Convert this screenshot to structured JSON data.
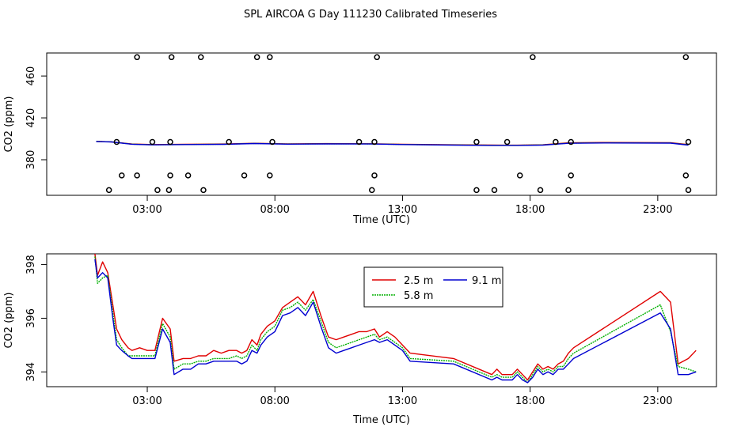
{
  "title": "SPL AIRCOA G  Day 111230  Calibrated Timeseries",
  "chart_data": [
    {
      "type": "scatter",
      "xlabel": "Time (UTC)",
      "ylabel": "CO2 (ppm)",
      "xlim": [
        -0.94,
        25.3
      ],
      "ylim": [
        346,
        482
      ],
      "xticks": [
        3,
        8,
        13,
        18,
        23
      ],
      "xtick_labels": [
        "03:00",
        "08:00",
        "13:00",
        "18:00",
        "23:00"
      ],
      "yticks": [
        380,
        420,
        460
      ],
      "ytick_labels": [
        "380",
        "420",
        "460"
      ],
      "points": [
        [
          1.5,
          351
        ],
        [
          2.6,
          365
        ],
        [
          3.4,
          351
        ],
        [
          3.85,
          351
        ],
        [
          5.2,
          351
        ],
        [
          7.8,
          365
        ],
        [
          11.8,
          351
        ],
        [
          15.9,
          351
        ],
        [
          16.6,
          351
        ],
        [
          18.4,
          351
        ],
        [
          19.5,
          351
        ],
        [
          24.2,
          351
        ],
        [
          2.0,
          365
        ],
        [
          3.9,
          365
        ],
        [
          4.6,
          365
        ],
        [
          6.8,
          365
        ],
        [
          11.9,
          365
        ],
        [
          17.6,
          365
        ],
        [
          19.6,
          365
        ],
        [
          24.1,
          365
        ],
        [
          1.8,
          397
        ],
        [
          3.2,
          397
        ],
        [
          3.9,
          397
        ],
        [
          6.2,
          397
        ],
        [
          7.9,
          397
        ],
        [
          11.3,
          397
        ],
        [
          11.9,
          397
        ],
        [
          15.9,
          397
        ],
        [
          17.1,
          397
        ],
        [
          19.0,
          397
        ],
        [
          19.6,
          397
        ],
        [
          24.2,
          397
        ],
        [
          2.6,
          478
        ],
        [
          3.95,
          478
        ],
        [
          5.1,
          478
        ],
        [
          7.3,
          478
        ],
        [
          7.8,
          478
        ],
        [
          12.0,
          478
        ],
        [
          18.1,
          478
        ],
        [
          24.1,
          478
        ]
      ],
      "series": [
        {
          "name": "2.5 m",
          "color": "#e00000",
          "x": [
            1.0,
            1.6,
            2.4,
            3.2,
            4.5,
            6.0,
            7.2,
            8.5,
            10.0,
            11.8,
            13.0,
            15.0,
            16.5,
            17.5,
            18.5,
            19.5,
            21.0,
            23.5,
            24.2
          ],
          "y": [
            397.5,
            397.1,
            395.0,
            394.5,
            394.8,
            395.0,
            395.7,
            395.2,
            395.4,
            395.3,
            394.8,
            394.3,
            394.0,
            393.9,
            394.3,
            396.2,
            396.5,
            396.3,
            394.5
          ]
        },
        {
          "name": "5.8 m",
          "color": "#00b000",
          "x": [
            1.0,
            1.6,
            2.4,
            3.2,
            4.5,
            6.0,
            7.2,
            8.5,
            10.0,
            11.8,
            13.0,
            15.0,
            16.5,
            17.5,
            18.5,
            19.5,
            21.0,
            23.5,
            24.2
          ],
          "y": [
            397.5,
            397.1,
            394.9,
            394.3,
            394.6,
            394.8,
            395.6,
            395.0,
            395.2,
            395.1,
            394.6,
            394.1,
            393.8,
            393.8,
            394.1,
            395.9,
            396.2,
            396.0,
            394.2
          ]
        },
        {
          "name": "9.1 m",
          "color": "#0000d0",
          "x": [
            1.0,
            1.6,
            2.4,
            3.2,
            4.5,
            6.0,
            7.2,
            8.5,
            10.0,
            11.8,
            13.0,
            15.0,
            16.5,
            17.5,
            18.5,
            19.5,
            21.0,
            23.5,
            24.2
          ],
          "y": [
            397.4,
            397.0,
            394.8,
            394.2,
            394.5,
            394.7,
            395.5,
            394.9,
            395.1,
            395.0,
            394.5,
            394.0,
            393.7,
            393.7,
            394.0,
            395.7,
            396.0,
            395.9,
            394.0
          ]
        }
      ]
    },
    {
      "type": "line",
      "xlabel": "Time (UTC)",
      "ylabel": "CO2 (ppm)",
      "xlim": [
        -0.94,
        25.3
      ],
      "ylim": [
        393.45,
        398.4
      ],
      "xticks": [
        3,
        8,
        13,
        18,
        23
      ],
      "xtick_labels": [
        "03:00",
        "08:00",
        "13:00",
        "18:00",
        "23:00"
      ],
      "yticks": [
        394,
        396,
        398
      ],
      "ytick_labels": [
        "394",
        "396",
        "398"
      ],
      "legend": {
        "position": "top-center",
        "entries": [
          "2.5 m",
          "5.8 m",
          "9.1 m"
        ]
      },
      "series": [
        {
          "name": "2.5 m",
          "color": "#e00000",
          "x": [
            0.95,
            1.05,
            1.25,
            1.45,
            1.65,
            1.8,
            2.0,
            2.25,
            2.4,
            2.7,
            3.0,
            3.3,
            3.6,
            3.9,
            4.05,
            4.4,
            4.7,
            5.0,
            5.3,
            5.6,
            5.9,
            6.2,
            6.5,
            6.7,
            6.9,
            7.1,
            7.3,
            7.45,
            7.7,
            8.0,
            8.3,
            8.6,
            8.9,
            9.2,
            9.5,
            9.8,
            10.1,
            10.4,
            10.7,
            11.0,
            11.3,
            11.6,
            11.9,
            12.1,
            12.4,
            12.7,
            13.0,
            13.3,
            15.0,
            16.5,
            16.7,
            16.9,
            17.1,
            17.3,
            17.5,
            17.7,
            17.9,
            18.1,
            18.3,
            18.5,
            18.7,
            18.9,
            19.1,
            19.3,
            19.5,
            19.7,
            23.1,
            23.5,
            23.8,
            24.2,
            24.5
          ],
          "y": [
            398.4,
            397.6,
            398.1,
            397.7,
            396.5,
            395.6,
            395.2,
            394.9,
            394.8,
            394.9,
            394.8,
            394.8,
            396.0,
            395.6,
            394.4,
            394.5,
            394.5,
            394.6,
            394.6,
            394.8,
            394.7,
            394.8,
            394.8,
            394.7,
            394.8,
            395.2,
            395.0,
            395.4,
            395.7,
            395.9,
            396.4,
            396.6,
            396.8,
            396.5,
            397.0,
            396.1,
            395.3,
            395.2,
            395.3,
            395.4,
            395.5,
            395.5,
            395.6,
            395.3,
            395.5,
            395.3,
            395.0,
            394.7,
            394.5,
            393.9,
            394.1,
            393.9,
            393.9,
            393.9,
            394.1,
            393.9,
            393.7,
            394.0,
            394.3,
            394.1,
            394.2,
            394.1,
            394.3,
            394.4,
            394.7,
            394.9,
            397.0,
            396.6,
            394.3,
            394.5,
            394.8
          ]
        },
        {
          "name": "5.8 m",
          "color": "#00b000",
          "x": [
            0.95,
            1.05,
            1.25,
            1.45,
            1.65,
            1.8,
            2.0,
            2.25,
            2.4,
            2.7,
            3.0,
            3.3,
            3.6,
            3.9,
            4.05,
            4.4,
            4.7,
            5.0,
            5.3,
            5.6,
            5.9,
            6.2,
            6.5,
            6.7,
            6.9,
            7.1,
            7.3,
            7.45,
            7.7,
            8.0,
            8.3,
            8.6,
            8.9,
            9.2,
            9.5,
            9.8,
            10.1,
            10.4,
            10.7,
            11.0,
            11.3,
            11.6,
            11.9,
            12.1,
            12.4,
            12.7,
            13.0,
            13.3,
            15.0,
            16.5,
            16.7,
            16.9,
            17.1,
            17.3,
            17.5,
            17.7,
            17.9,
            18.1,
            18.3,
            18.5,
            18.7,
            18.9,
            19.1,
            19.3,
            19.5,
            19.7,
            23.1,
            23.5,
            23.8,
            24.2,
            24.5
          ],
          "y": [
            398.3,
            397.3,
            397.5,
            397.6,
            396.2,
            395.2,
            394.9,
            394.6,
            394.6,
            394.6,
            394.6,
            394.6,
            395.8,
            395.3,
            394.1,
            394.3,
            394.3,
            394.4,
            394.4,
            394.5,
            394.5,
            394.5,
            394.6,
            394.5,
            394.6,
            395.0,
            394.8,
            395.2,
            395.5,
            395.7,
            396.3,
            396.4,
            396.6,
            396.3,
            396.7,
            395.9,
            395.1,
            394.9,
            395.0,
            395.1,
            395.2,
            395.3,
            395.4,
            395.2,
            395.3,
            395.1,
            394.9,
            394.5,
            394.4,
            393.8,
            393.9,
            393.8,
            393.8,
            393.8,
            394.0,
            393.8,
            393.6,
            393.9,
            394.2,
            394.0,
            394.1,
            394.0,
            394.2,
            394.2,
            394.5,
            394.7,
            396.5,
            395.5,
            394.2,
            394.1,
            394.0
          ]
        },
        {
          "name": "9.1 m",
          "color": "#0000d0",
          "x": [
            0.95,
            1.05,
            1.25,
            1.45,
            1.65,
            1.8,
            2.0,
            2.25,
            2.4,
            2.7,
            3.0,
            3.3,
            3.6,
            3.9,
            4.05,
            4.4,
            4.7,
            5.0,
            5.3,
            5.6,
            5.9,
            6.2,
            6.5,
            6.7,
            6.9,
            7.1,
            7.3,
            7.45,
            7.7,
            8.0,
            8.3,
            8.6,
            8.9,
            9.2,
            9.5,
            9.8,
            10.1,
            10.4,
            10.7,
            11.0,
            11.3,
            11.6,
            11.9,
            12.1,
            12.4,
            12.7,
            13.0,
            13.3,
            15.0,
            16.5,
            16.7,
            16.9,
            17.1,
            17.3,
            17.5,
            17.7,
            17.9,
            18.1,
            18.3,
            18.5,
            18.7,
            18.9,
            19.1,
            19.3,
            19.5,
            19.7,
            23.1,
            23.5,
            23.8,
            24.2,
            24.5
          ],
          "y": [
            398.2,
            397.5,
            397.7,
            397.5,
            396.0,
            395.0,
            394.8,
            394.6,
            394.5,
            394.5,
            394.5,
            394.5,
            395.6,
            395.1,
            393.9,
            394.1,
            394.1,
            394.3,
            394.3,
            394.4,
            394.4,
            394.4,
            394.4,
            394.3,
            394.4,
            394.8,
            394.7,
            395.0,
            395.3,
            395.5,
            396.1,
            396.2,
            396.4,
            396.1,
            396.6,
            395.7,
            394.9,
            394.7,
            394.8,
            394.9,
            395.0,
            395.1,
            395.2,
            395.1,
            395.2,
            395.0,
            394.8,
            394.4,
            394.3,
            393.7,
            393.8,
            393.7,
            393.7,
            393.7,
            393.9,
            393.7,
            393.6,
            393.8,
            394.1,
            393.9,
            394.0,
            393.9,
            394.1,
            394.1,
            394.3,
            394.5,
            396.2,
            395.6,
            393.9,
            393.9,
            394.0
          ]
        }
      ]
    }
  ]
}
